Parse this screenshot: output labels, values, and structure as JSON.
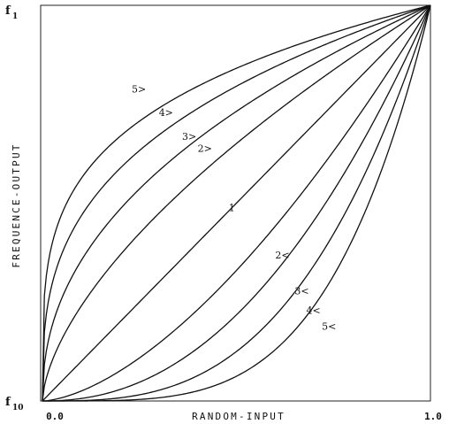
{
  "chart_data": {
    "type": "line",
    "xlabel": "RANDOM-INPUT",
    "ylabel": "FREQUENCE-OUTPUT",
    "x_ticks": [
      "0.0",
      "1.0"
    ],
    "y_top_label": {
      "base": "f",
      "sub": "1"
    },
    "y_bottom_label": {
      "base": "f",
      "sub": "10"
    },
    "xlim": [
      0,
      1
    ],
    "ylim": [
      0,
      1
    ],
    "grid": false,
    "legend": "none",
    "series": [
      {
        "label": "5>",
        "power": 0.25,
        "label_pos": [
          0.23,
          0.78
        ]
      },
      {
        "label": "4>",
        "power": 0.33,
        "label_pos": [
          0.3,
          0.72
        ]
      },
      {
        "label": "3>",
        "power": 0.45,
        "label_pos": [
          0.36,
          0.66
        ]
      },
      {
        "label": "2>",
        "power": 0.62,
        "label_pos": [
          0.4,
          0.63
        ]
      },
      {
        "label": "1",
        "power": 1.0,
        "label_pos": [
          0.48,
          0.48
        ]
      },
      {
        "label": "2<",
        "power": 1.6,
        "label_pos": [
          0.6,
          0.36
        ]
      },
      {
        "label": "3<",
        "power": 2.2,
        "label_pos": [
          0.65,
          0.27
        ]
      },
      {
        "label": "4<",
        "power": 3.0,
        "label_pos": [
          0.68,
          0.22
        ]
      },
      {
        "label": "5<",
        "power": 4.0,
        "label_pos": [
          0.72,
          0.18
        ]
      }
    ]
  }
}
